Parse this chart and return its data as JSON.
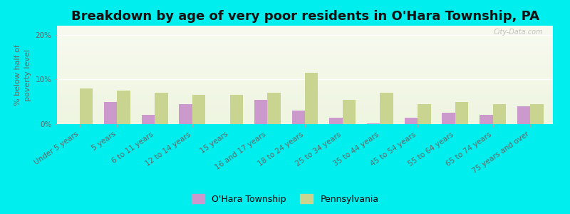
{
  "title": "Breakdown by age of very poor residents in O'Hara Township, PA",
  "ylabel": "% below half of\npoverty level",
  "categories": [
    "Under 5 years",
    "5 years",
    "6 to 11 years",
    "12 to 14 years",
    "15 years",
    "16 and 17 years",
    "18 to 24 years",
    "25 to 34 years",
    "35 to 44 years",
    "45 to 54 years",
    "55 to 64 years",
    "65 to 74 years",
    "75 years and over"
  ],
  "ohara_values": [
    0,
    5.0,
    2.0,
    4.5,
    0,
    5.5,
    3.0,
    1.5,
    0.2,
    1.5,
    2.5,
    2.0,
    4.0
  ],
  "pa_values": [
    8.0,
    7.5,
    7.0,
    6.5,
    6.5,
    7.0,
    11.5,
    5.5,
    7.0,
    4.5,
    5.0,
    4.5,
    4.5
  ],
  "ohara_color": "#cc99cc",
  "pa_color": "#c8d490",
  "background_color": "#00eeee",
  "plot_bg_color_top": "#f8faf0",
  "plot_bg_color_bottom": "#eef5e0",
  "ylim": [
    0,
    22
  ],
  "yticks": [
    0,
    10,
    20
  ],
  "ytick_labels": [
    "0%",
    "10%",
    "20%"
  ],
  "bar_width": 0.35,
  "title_fontsize": 13,
  "label_fontsize": 8,
  "tick_fontsize": 7.5,
  "legend_ohara": "O'Hara Township",
  "legend_pa": "Pennsylvania",
  "watermark": "City-Data.com"
}
